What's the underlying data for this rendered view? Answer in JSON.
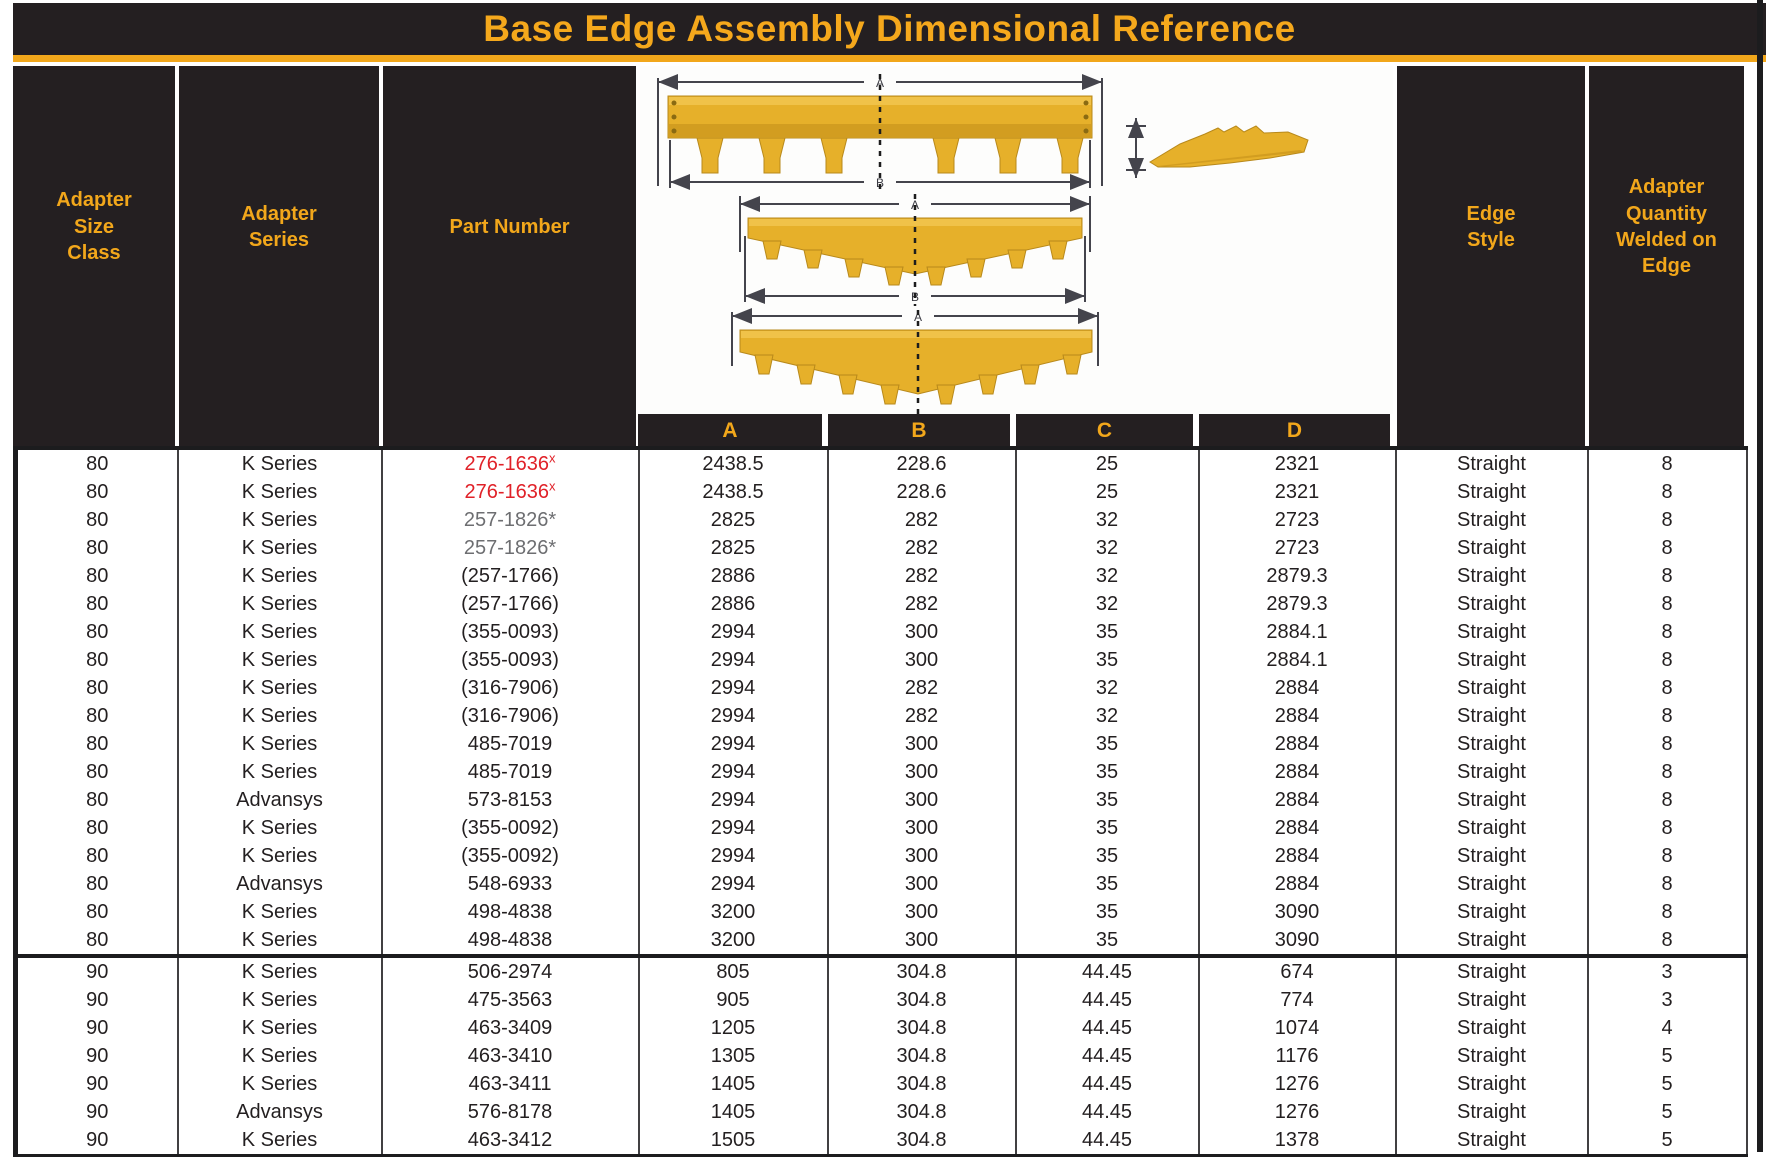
{
  "title": "Base Edge Assembly Dimensional Reference",
  "colors": {
    "header_bg": "#241f21",
    "accent_yellow": "#f2a71b",
    "part_red": "#e02128",
    "part_gray": "#6d6e71"
  },
  "headers": {
    "size_class": "Adapter\nSize\nClass",
    "series": "Adapter\nSeries",
    "part": "Part Number",
    "edge_style": "Edge\nStyle",
    "qty": "Adapter\nQuantity\nWelded on\nEdge"
  },
  "dim_columns": [
    "A",
    "B",
    "C",
    "D"
  ],
  "diagram": {
    "name": "base-edge-assembly-drawings",
    "dim_labels": {
      "d1_top": "A",
      "d1_bottom": "B",
      "d2_top": "A",
      "d2_bottom": "B",
      "d3_top": "A"
    }
  },
  "rows": [
    {
      "size_class": "80",
      "series": "K Series",
      "part": "276-1636",
      "part_sup": "x",
      "part_color": "red",
      "a": "2438.5",
      "b": "228.6",
      "c": "25",
      "d": "2321",
      "edge_style": "Straight",
      "qty": "8"
    },
    {
      "size_class": "80",
      "series": "K Series",
      "part": "276-1636",
      "part_sup": "x",
      "part_color": "red",
      "a": "2438.5",
      "b": "228.6",
      "c": "25",
      "d": "2321",
      "edge_style": "Straight",
      "qty": "8"
    },
    {
      "size_class": "80",
      "series": "K Series",
      "part": "257-1826*",
      "part_color": "gray",
      "a": "2825",
      "b": "282",
      "c": "32",
      "d": "2723",
      "edge_style": "Straight",
      "qty": "8"
    },
    {
      "size_class": "80",
      "series": "K Series",
      "part": "257-1826*",
      "part_color": "gray",
      "a": "2825",
      "b": "282",
      "c": "32",
      "d": "2723",
      "edge_style": "Straight",
      "qty": "8"
    },
    {
      "size_class": "80",
      "series": "K Series",
      "part": "(257-1766)",
      "a": "2886",
      "b": "282",
      "c": "32",
      "d": "2879.3",
      "edge_style": "Straight",
      "qty": "8"
    },
    {
      "size_class": "80",
      "series": "K Series",
      "part": "(257-1766)",
      "a": "2886",
      "b": "282",
      "c": "32",
      "d": "2879.3",
      "edge_style": "Straight",
      "qty": "8"
    },
    {
      "size_class": "80",
      "series": "K Series",
      "part": "(355-0093)",
      "a": "2994",
      "b": "300",
      "c": "35",
      "d": "2884.1",
      "edge_style": "Straight",
      "qty": "8"
    },
    {
      "size_class": "80",
      "series": "K Series",
      "part": "(355-0093)",
      "a": "2994",
      "b": "300",
      "c": "35",
      "d": "2884.1",
      "edge_style": "Straight",
      "qty": "8"
    },
    {
      "size_class": "80",
      "series": "K Series",
      "part": "(316-7906)",
      "a": "2994",
      "b": "282",
      "c": "32",
      "d": "2884",
      "edge_style": "Straight",
      "qty": "8"
    },
    {
      "size_class": "80",
      "series": "K Series",
      "part": "(316-7906)",
      "a": "2994",
      "b": "282",
      "c": "32",
      "d": "2884",
      "edge_style": "Straight",
      "qty": "8"
    },
    {
      "size_class": "80",
      "series": "K Series",
      "part": "485-7019",
      "a": "2994",
      "b": "300",
      "c": "35",
      "d": "2884",
      "edge_style": "Straight",
      "qty": "8"
    },
    {
      "size_class": "80",
      "series": "K Series",
      "part": "485-7019",
      "a": "2994",
      "b": "300",
      "c": "35",
      "d": "2884",
      "edge_style": "Straight",
      "qty": "8"
    },
    {
      "size_class": "80",
      "series": "Advansys",
      "part": "573-8153",
      "a": "2994",
      "b": "300",
      "c": "35",
      "d": "2884",
      "edge_style": "Straight",
      "qty": "8"
    },
    {
      "size_class": "80",
      "series": "K Series",
      "part": "(355-0092)",
      "a": "2994",
      "b": "300",
      "c": "35",
      "d": "2884",
      "edge_style": "Straight",
      "qty": "8"
    },
    {
      "size_class": "80",
      "series": "K Series",
      "part": "(355-0092)",
      "a": "2994",
      "b": "300",
      "c": "35",
      "d": "2884",
      "edge_style": "Straight",
      "qty": "8"
    },
    {
      "size_class": "80",
      "series": "Advansys",
      "part": "548-6933",
      "a": "2994",
      "b": "300",
      "c": "35",
      "d": "2884",
      "edge_style": "Straight",
      "qty": "8"
    },
    {
      "size_class": "80",
      "series": "K Series",
      "part": "498-4838",
      "a": "3200",
      "b": "300",
      "c": "35",
      "d": "3090",
      "edge_style": "Straight",
      "qty": "8"
    },
    {
      "size_class": "80",
      "series": "K Series",
      "part": "498-4838",
      "a": "3200",
      "b": "300",
      "c": "35",
      "d": "3090",
      "edge_style": "Straight",
      "qty": "8"
    },
    {
      "size_class": "90",
      "series": "K Series",
      "part": "506-2974",
      "a": "805",
      "b": "304.8",
      "c": "44.45",
      "d": "674",
      "edge_style": "Straight",
      "qty": "3"
    },
    {
      "size_class": "90",
      "series": "K Series",
      "part": "475-3563",
      "a": "905",
      "b": "304.8",
      "c": "44.45",
      "d": "774",
      "edge_style": "Straight",
      "qty": "3"
    },
    {
      "size_class": "90",
      "series": "K Series",
      "part": "463-3409",
      "a": "1205",
      "b": "304.8",
      "c": "44.45",
      "d": "1074",
      "edge_style": "Straight",
      "qty": "4"
    },
    {
      "size_class": "90",
      "series": "K Series",
      "part": "463-3410",
      "a": "1305",
      "b": "304.8",
      "c": "44.45",
      "d": "1176",
      "edge_style": "Straight",
      "qty": "5"
    },
    {
      "size_class": "90",
      "series": "K Series",
      "part": "463-3411",
      "a": "1405",
      "b": "304.8",
      "c": "44.45",
      "d": "1276",
      "edge_style": "Straight",
      "qty": "5"
    },
    {
      "size_class": "90",
      "series": "Advansys",
      "part": "576-8178",
      "a": "1405",
      "b": "304.8",
      "c": "44.45",
      "d": "1276",
      "edge_style": "Straight",
      "qty": "5"
    },
    {
      "size_class": "90",
      "series": "K Series",
      "part": "463-3412",
      "a": "1505",
      "b": "304.8",
      "c": "44.45",
      "d": "1378",
      "edge_style": "Straight",
      "qty": "5"
    }
  ]
}
